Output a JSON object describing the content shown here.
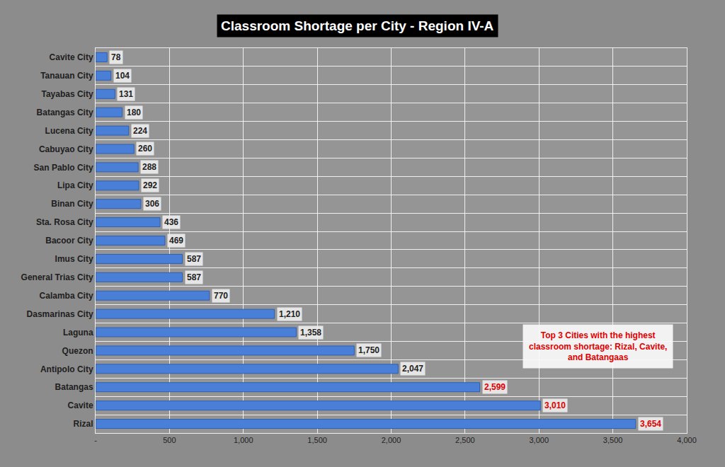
{
  "chart_data": {
    "type": "bar",
    "orientation": "horizontal",
    "title": "Classroom Shortage per City - Region IV-A",
    "categories": [
      "Cavite City",
      "Tanauan City",
      "Tayabas City",
      "Batangas City",
      "Lucena City",
      "Cabuyao City",
      "San Pablo City",
      "Lipa City",
      "Binan City",
      "Sta. Rosa City",
      "Bacoor City",
      "Imus City",
      "General Trias City",
      "Calamba City",
      "Dasmarinas City",
      "Laguna",
      "Quezon",
      "Antipolo City",
      "Batangas",
      "Cavite",
      "Rizal"
    ],
    "values": [
      78,
      104,
      131,
      180,
      224,
      260,
      288,
      292,
      306,
      436,
      469,
      587,
      587,
      770,
      1210,
      1358,
      1750,
      2047,
      2599,
      3010,
      3654
    ],
    "value_labels": [
      "78",
      "104",
      "131",
      "180",
      "224",
      "260",
      "288",
      "292",
      "306",
      "436",
      "469",
      "587",
      "587",
      "770",
      "1,210",
      "1,358",
      "1,750",
      "2,047",
      "2,599",
      "3,010",
      "3,654"
    ],
    "data_labels": true,
    "color": "#4a7fd8",
    "xlim": [
      0,
      4000
    ],
    "xticks": [
      {
        "value": 0,
        "label": "-"
      },
      500,
      {
        "value": 1000,
        "label": "1,000"
      },
      {
        "value": 1500,
        "label": "1,500"
      },
      {
        "value": 2000,
        "label": "2,000"
      },
      {
        "value": 2500,
        "label": "2,500"
      },
      {
        "value": 3000,
        "label": "3,000"
      },
      {
        "value": 3500,
        "label": "3,500"
      },
      {
        "value": 4000,
        "label": "4,000"
      }
    ],
    "grid": true,
    "annotation": [
      "Top 3 Cities with the highest",
      "classroom shortage: Rizal, Cavite,",
      "and Batangaas"
    ]
  }
}
